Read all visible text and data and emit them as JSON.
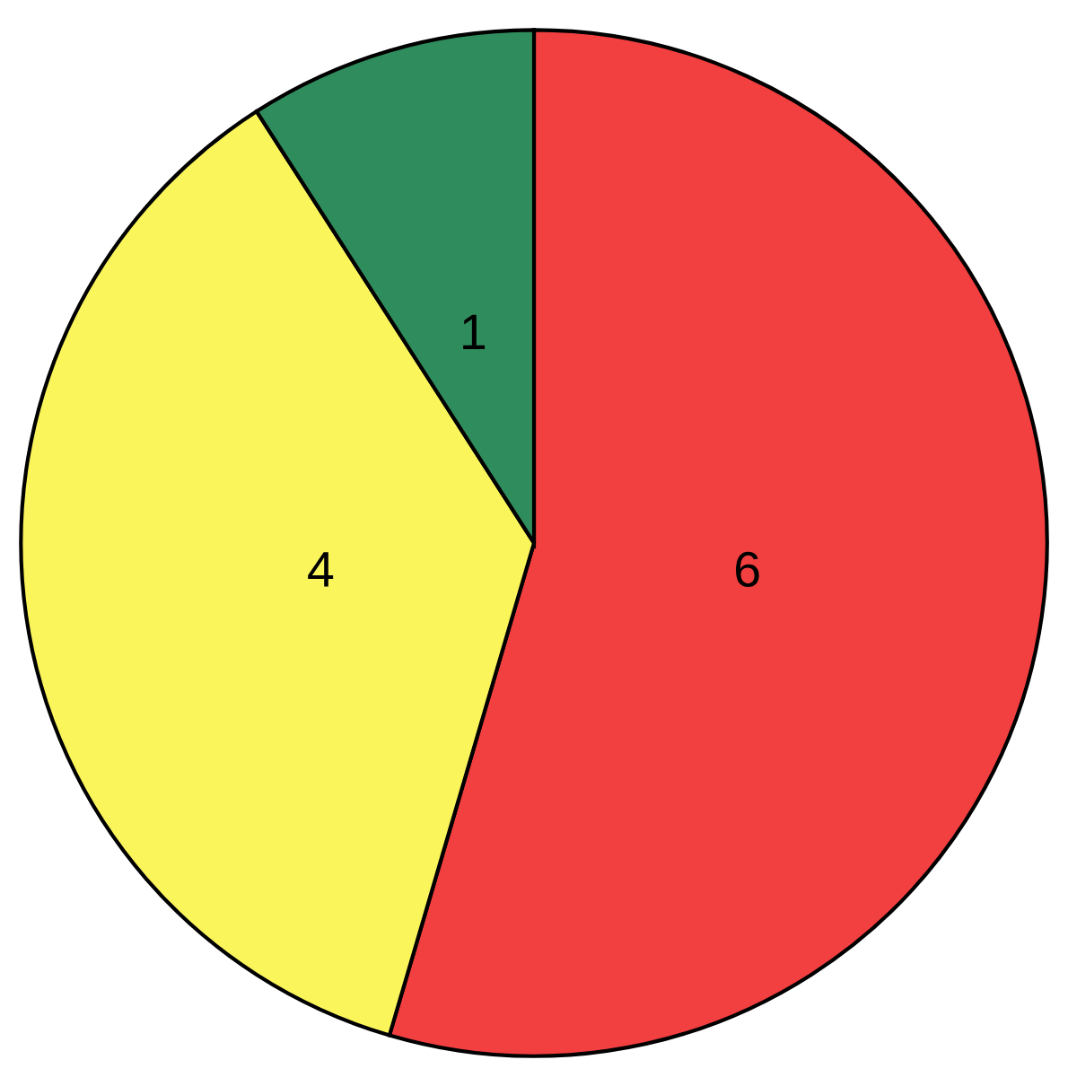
{
  "chart_data": {
    "type": "pie",
    "categories": [
      null,
      null,
      null
    ],
    "values": [
      6,
      4,
      1
    ],
    "colors": [
      "#f23f3f",
      "#fbf55c",
      "#2f8c5c"
    ],
    "data_labels": true
  }
}
